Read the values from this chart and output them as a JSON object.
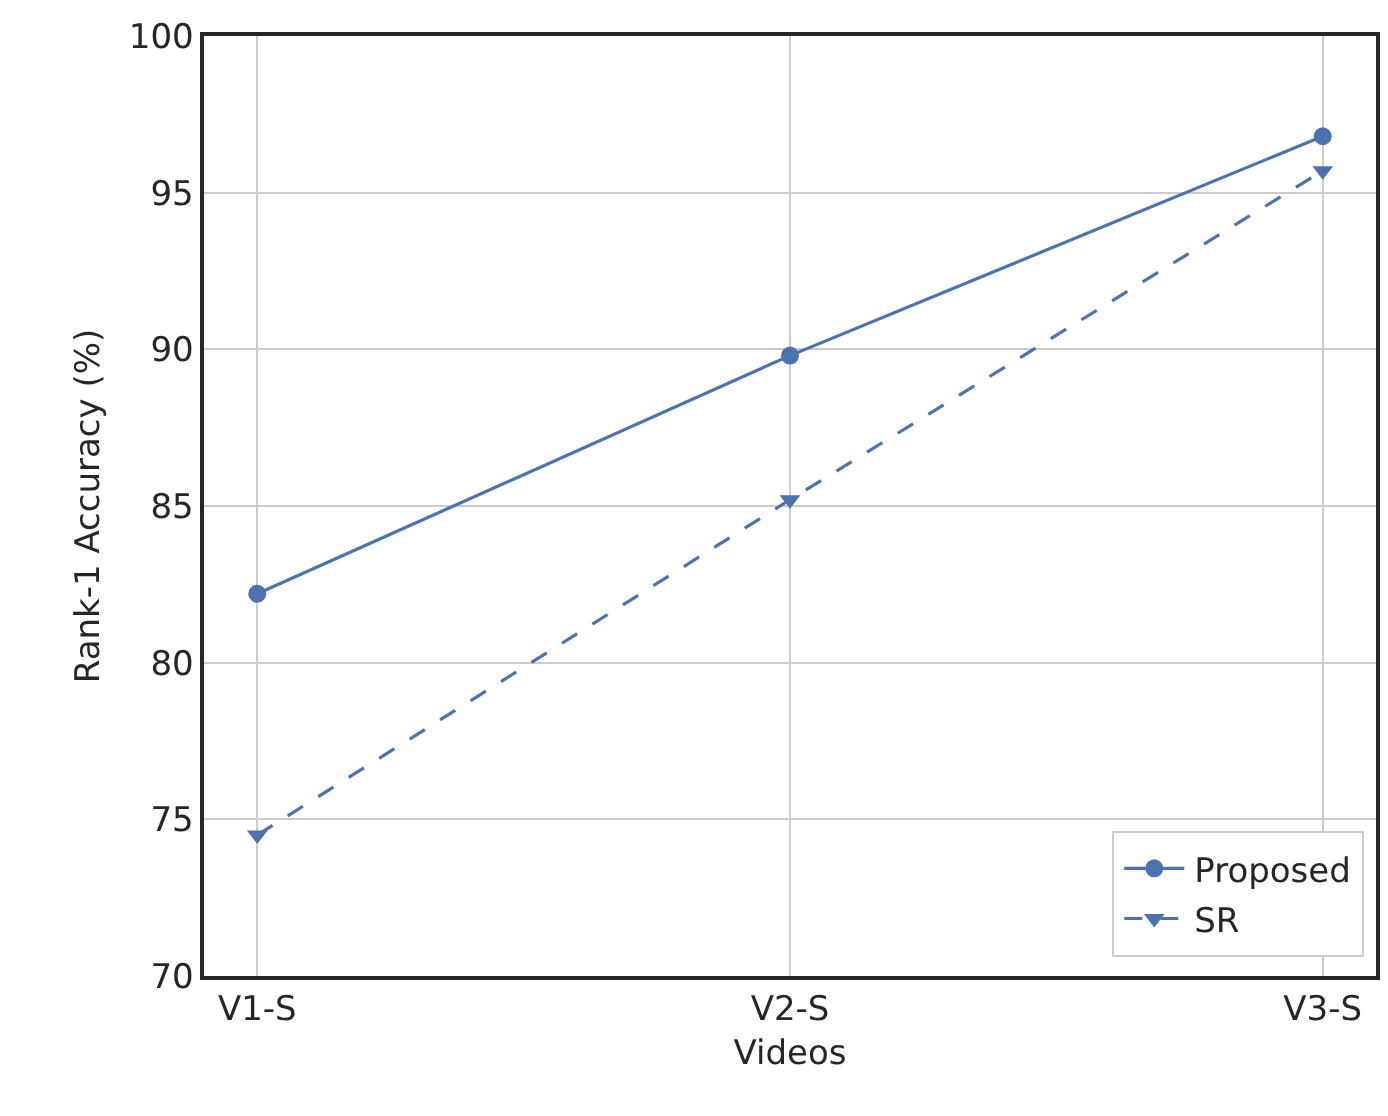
{
  "chart_data": {
    "type": "line",
    "xlabel": "Videos",
    "ylabel": "Rank-1 Accuracy (%)",
    "categories": [
      "V1-S",
      "V2-S",
      "V3-S"
    ],
    "series": [
      {
        "name": "Proposed",
        "color": "#4c72b0",
        "values": [
          82.2,
          89.8,
          96.8
        ],
        "marker": "circle",
        "line_style": "solid"
      },
      {
        "name": "SR",
        "color": "#4c72b0",
        "values": [
          74.5,
          85.2,
          95.7
        ],
        "marker": "triangle",
        "line_style": "dashed"
      }
    ],
    "ylim": [
      70,
      100
    ],
    "yticks": [
      70,
      75,
      80,
      85,
      90,
      95,
      100
    ],
    "grid": true,
    "legend": "bottom right"
  }
}
